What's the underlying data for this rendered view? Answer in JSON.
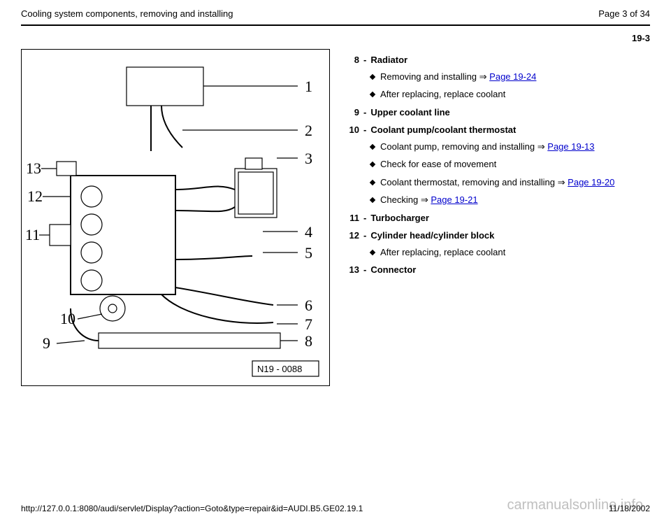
{
  "header": {
    "title": "Cooling system components, removing and installing",
    "page_label": "Page 3 of 34"
  },
  "section_number": "19-3",
  "figure": {
    "id_label": "N19 - 0088",
    "callouts": [
      "1",
      "2",
      "3",
      "4",
      "5",
      "6",
      "7",
      "8",
      "9",
      "10",
      "11",
      "12",
      "13"
    ]
  },
  "items": [
    {
      "num": "8",
      "title": "Radiator",
      "subs": [
        {
          "text_before": "Removing and installing ",
          "arrow": true,
          "link": "Page 19-24",
          "text_after": ""
        },
        {
          "text_before": "After replacing, replace coolant",
          "arrow": false,
          "link": "",
          "text_after": ""
        }
      ]
    },
    {
      "num": "9",
      "title": "Upper coolant line",
      "subs": []
    },
    {
      "num": "10",
      "title": "Coolant pump/coolant thermostat",
      "subs": [
        {
          "text_before": "Coolant pump, removing and installing ",
          "arrow": true,
          "link": "Page 19-13",
          "text_after": ""
        },
        {
          "text_before": "Check for ease of movement",
          "arrow": false,
          "link": "",
          "text_after": ""
        },
        {
          "text_before": "Coolant thermostat, removing and installing ",
          "arrow": true,
          "link": "Page 19-20",
          "text_after": ""
        },
        {
          "text_before": "Checking ",
          "arrow": true,
          "link": "Page 19-21",
          "text_after": ""
        }
      ]
    },
    {
      "num": "11",
      "title": "Turbocharger",
      "subs": []
    },
    {
      "num": "12",
      "title": "Cylinder head/cylinder block",
      "subs": [
        {
          "text_before": "After replacing, replace coolant",
          "arrow": false,
          "link": "",
          "text_after": ""
        }
      ]
    },
    {
      "num": "13",
      "title": "Connector",
      "subs": []
    }
  ],
  "footer": {
    "url": "http://127.0.0.1:8080/audi/servlet/Display?action=Goto&type=repair&id=AUDI.B5.GE02.19.1",
    "date": "11/18/2002"
  },
  "watermark": "carmanualsonline.info",
  "colors": {
    "link": "#0000cc",
    "watermark": "#bfbfbf",
    "text": "#000000",
    "background": "#ffffff"
  }
}
